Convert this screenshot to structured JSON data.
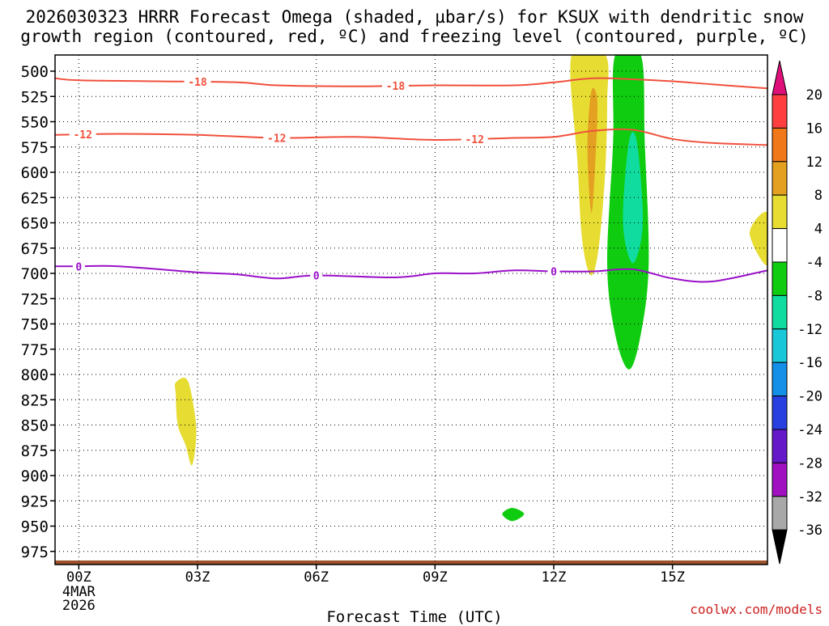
{
  "title": {
    "line1": "2026030323 HRRR Forecast Omega (shaded, µbar/s) for KSUX with dendritic snow",
    "line2": "growth region (contoured, red, ºC) and freezing level (contoured, purple, ºC)"
  },
  "watermark": "coolwx.com/models",
  "chart_data": {
    "type": "time-height cross-section",
    "x_label": "Forecast Time (UTC)",
    "x_range_hours": [
      -0.6,
      17.4
    ],
    "x_ticks": [
      {
        "hour": 0,
        "label": "00Z",
        "sub": [
          "4MAR",
          "2026"
        ]
      },
      {
        "hour": 3,
        "label": "03Z"
      },
      {
        "hour": 6,
        "label": "06Z"
      },
      {
        "hour": 9,
        "label": "09Z"
      },
      {
        "hour": 12,
        "label": "12Z"
      },
      {
        "hour": 15,
        "label": "15Z"
      }
    ],
    "y_label_units": "mb",
    "y_range_mb": [
      484,
      988
    ],
    "y_ticks": [
      500,
      525,
      550,
      575,
      600,
      625,
      650,
      675,
      700,
      725,
      750,
      775,
      800,
      825,
      850,
      875,
      900,
      925,
      950,
      975
    ],
    "colorbar": {
      "levels": [
        "20",
        "16",
        "12",
        "8",
        "4",
        "-4",
        "-8",
        "-12",
        "-16",
        "-20",
        "-24",
        "-28",
        "-32",
        "-36"
      ],
      "colors": [
        "#ff3f3f",
        "#f07818",
        "#e4a020",
        "#e6dc32",
        "#ffffff",
        "#10cc10",
        "#10dca0",
        "#18c8d8",
        "#1490e8",
        "#2840e0",
        "#6418c8",
        "#a010c0",
        "#a8a8a8"
      ],
      "top_arrow_color": "#e0107a",
      "bottom_arrow_color": "#000000"
    },
    "contours": [
      {
        "name": "minus18",
        "label": "-18",
        "color": "#f0503c",
        "points": [
          [
            -0.6,
            507
          ],
          [
            0,
            509
          ],
          [
            2,
            510
          ],
          [
            4,
            511
          ],
          [
            5,
            514
          ],
          [
            7,
            515
          ],
          [
            9,
            514
          ],
          [
            11,
            514
          ],
          [
            12,
            511
          ],
          [
            13,
            507
          ],
          [
            14,
            508
          ],
          [
            15,
            510
          ],
          [
            16,
            513
          ],
          [
            17.4,
            517
          ]
        ],
        "label_hours": [
          3,
          8
        ]
      },
      {
        "name": "minus12",
        "label": "-12",
        "color": "#f0503c",
        "points": [
          [
            -0.6,
            563
          ],
          [
            1,
            562
          ],
          [
            3,
            563
          ],
          [
            5,
            566
          ],
          [
            7,
            565
          ],
          [
            9,
            568
          ],
          [
            11,
            566
          ],
          [
            12,
            565
          ],
          [
            13,
            559
          ],
          [
            14,
            558
          ],
          [
            15,
            567
          ],
          [
            16,
            571
          ],
          [
            17.4,
            573
          ]
        ],
        "label_hours": [
          0.1,
          5,
          10
        ]
      },
      {
        "name": "freezing",
        "label": "0",
        "color": "#9a10c8",
        "points": [
          [
            -0.6,
            693
          ],
          [
            0,
            693
          ],
          [
            1,
            693
          ],
          [
            3,
            699
          ],
          [
            4,
            701
          ],
          [
            5,
            705
          ],
          [
            6,
            702
          ],
          [
            8,
            704
          ],
          [
            9,
            700
          ],
          [
            10,
            700
          ],
          [
            11,
            697
          ],
          [
            12,
            698
          ],
          [
            13,
            698
          ],
          [
            14,
            696
          ],
          [
            15,
            705
          ],
          [
            16,
            708
          ],
          [
            17.4,
            697
          ]
        ],
        "label_hours": [
          0,
          6,
          12
        ]
      }
    ],
    "omega_regions": [
      {
        "name": "lift-yellow-13z",
        "value_band": "4 to 8",
        "color": "#e6dc32",
        "points": [
          [
            12.45,
            484
          ],
          [
            12.6,
            590
          ],
          [
            12.7,
            660
          ],
          [
            12.85,
            695
          ],
          [
            13.0,
            700
          ],
          [
            13.15,
            670
          ],
          [
            13.3,
            600
          ],
          [
            13.35,
            530
          ],
          [
            13.3,
            484
          ]
        ]
      },
      {
        "name": "lift-orange-13z",
        "value_band": "8 to 12",
        "color": "#e4a020",
        "points": [
          [
            12.95,
            520
          ],
          [
            12.85,
            575
          ],
          [
            12.95,
            640
          ],
          [
            13.05,
            590
          ],
          [
            13.1,
            530
          ]
        ]
      },
      {
        "name": "sink-green-14z",
        "value_band": "-4 to -8",
        "color": "#10cc10",
        "points": [
          [
            13.55,
            484
          ],
          [
            13.5,
            570
          ],
          [
            13.35,
            690
          ],
          [
            13.55,
            760
          ],
          [
            13.9,
            795
          ],
          [
            14.2,
            760
          ],
          [
            14.4,
            690
          ],
          [
            14.3,
            570
          ],
          [
            14.2,
            484
          ]
        ]
      },
      {
        "name": "sink-teal-14z",
        "value_band": "-8 to -12",
        "color": "#10dca0",
        "points": [
          [
            13.9,
            570
          ],
          [
            13.75,
            650
          ],
          [
            14.0,
            690
          ],
          [
            14.25,
            650
          ],
          [
            14.1,
            570
          ]
        ]
      },
      {
        "name": "lift-yellow-03z",
        "value_band": "4 to 8",
        "color": "#e6dc32",
        "points": [
          [
            2.45,
            808
          ],
          [
            2.75,
            806
          ],
          [
            2.95,
            845
          ],
          [
            2.95,
            870
          ],
          [
            2.85,
            890
          ],
          [
            2.7,
            870
          ],
          [
            2.5,
            850
          ],
          [
            2.45,
            820
          ]
        ]
      },
      {
        "name": "lift-yellow-17z",
        "value_band": "4 to 8",
        "color": "#e6dc32",
        "points": [
          [
            17.4,
            640
          ],
          [
            16.95,
            660
          ],
          [
            17.4,
            692
          ]
        ]
      },
      {
        "name": "sink-green-11z",
        "value_band": "-4 to -8",
        "color": "#10cc10",
        "points": [
          [
            10.7,
            938
          ],
          [
            10.95,
            932
          ],
          [
            11.25,
            938
          ],
          [
            10.95,
            945
          ]
        ]
      }
    ],
    "terrain_top_mb": 984,
    "terrain_color": "#a0522d"
  }
}
